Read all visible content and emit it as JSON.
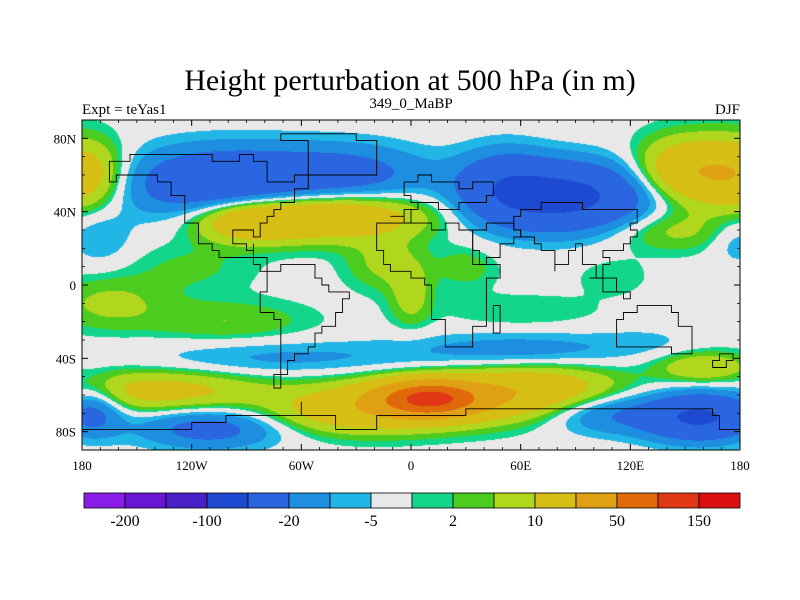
{
  "title": "Height perturbation at 500 hPa (in m)",
  "subtitle_left": "Expt = teYas1",
  "subtitle_center": "349_0_MaBP",
  "subtitle_right": "DJF",
  "chart_data": {
    "type": "heatmap",
    "projection": "cylindrical-equidistant",
    "xlim": [
      -180,
      180
    ],
    "ylim": [
      -90,
      90
    ],
    "x_ticks": [
      {
        "value": -180,
        "label": "180"
      },
      {
        "value": -120,
        "label": "120W"
      },
      {
        "value": -60,
        "label": "60W"
      },
      {
        "value": 0,
        "label": "0"
      },
      {
        "value": 60,
        "label": "60E"
      },
      {
        "value": 120,
        "label": "120E"
      },
      {
        "value": 180,
        "label": "180"
      }
    ],
    "y_ticks": [
      {
        "value": 80,
        "label": "80N"
      },
      {
        "value": 40,
        "label": "40N"
      },
      {
        "value": 0,
        "label": "0"
      },
      {
        "value": -40,
        "label": "40S"
      },
      {
        "value": -80,
        "label": "80S"
      }
    ],
    "colorbar": {
      "colors": [
        "#8a1ee8",
        "#6a14d6",
        "#4a20c8",
        "#1e4ad2",
        "#2a66e0",
        "#1e8ee0",
        "#22b6e6",
        "#e8e8e8",
        "#14d68a",
        "#4ccc1e",
        "#b0d61e",
        "#d6be14",
        "#e0a014",
        "#e06a0a",
        "#e03814",
        "#dc1010"
      ],
      "labels": [
        {
          "after_color": 0,
          "text": "-200"
        },
        {
          "after_color": 2,
          "text": "-100"
        },
        {
          "after_color": 4,
          "text": "-20"
        },
        {
          "after_color": 6,
          "text": "-5"
        },
        {
          "after_color": 8,
          "text": "2"
        },
        {
          "after_color": 10,
          "text": "10"
        },
        {
          "after_color": 12,
          "text": "50"
        },
        {
          "after_color": 14,
          "text": "150"
        }
      ]
    },
    "fields": [
      {
        "lon": -100,
        "lat": 55,
        "value": -45,
        "slon": 40,
        "slat": 14
      },
      {
        "lon": -30,
        "lat": 60,
        "value": -22,
        "slon": 30,
        "slat": 12
      },
      {
        "lon": 85,
        "lat": 48,
        "value": -60,
        "slon": 32,
        "slat": 13
      },
      {
        "lon": 50,
        "lat": 55,
        "value": -25,
        "slon": 18,
        "slat": 14
      },
      {
        "lon": 150,
        "lat": 62,
        "value": 42,
        "slon": 18,
        "slat": 12
      },
      {
        "lon": -180,
        "lat": 60,
        "value": 38,
        "slon": 16,
        "slat": 13
      },
      {
        "lon": 180,
        "lat": 60,
        "value": 38,
        "slon": 16,
        "slat": 13
      },
      {
        "lon": -50,
        "lat": 38,
        "value": 50,
        "slon": 38,
        "slat": 9
      },
      {
        "lon": -90,
        "lat": 35,
        "value": 30,
        "slon": 20,
        "slat": 8
      },
      {
        "lon": 140,
        "lat": 30,
        "value": 14,
        "slon": 25,
        "slat": 8
      },
      {
        "lon": -170,
        "lat": 25,
        "value": -10,
        "slon": 12,
        "slat": 10
      },
      {
        "lon": 178,
        "lat": 25,
        "value": -10,
        "slon": 10,
        "slat": 10
      },
      {
        "lon": -15,
        "lat": 12,
        "value": 12,
        "slon": 14,
        "slat": 10
      },
      {
        "lon": 0,
        "lat": -5,
        "value": 14,
        "slon": 8,
        "slat": 12
      },
      {
        "lon": 30,
        "lat": 10,
        "value": 8,
        "slon": 12,
        "slat": 8
      },
      {
        "lon": -120,
        "lat": 10,
        "value": 6,
        "slon": 25,
        "slat": 10
      },
      {
        "lon": 110,
        "lat": 5,
        "value": 4,
        "slon": 15,
        "slat": 8
      },
      {
        "lon": -165,
        "lat": -10,
        "value": 12,
        "slon": 22,
        "slat": 10
      },
      {
        "lon": -100,
        "lat": -20,
        "value": 10,
        "slon": 30,
        "slat": 8
      },
      {
        "lon": 60,
        "lat": -15,
        "value": 5,
        "slon": 30,
        "slat": 7
      },
      {
        "lon": -70,
        "lat": -40,
        "value": -12,
        "slon": 55,
        "slat": 7
      },
      {
        "lon": 60,
        "lat": -35,
        "value": -14,
        "slon": 45,
        "slat": 7
      },
      {
        "lon": 130,
        "lat": -30,
        "value": -4,
        "slon": 20,
        "slat": 6
      },
      {
        "lon": 160,
        "lat": -45,
        "value": 20,
        "slon": 18,
        "slat": 6
      },
      {
        "lon": -140,
        "lat": -58,
        "value": 28,
        "slon": 40,
        "slat": 8
      },
      {
        "lon": 10,
        "lat": -62,
        "value": 130,
        "slon": 18,
        "slat": 6
      },
      {
        "lon": 20,
        "lat": -62,
        "value": 40,
        "slon": 45,
        "slat": 9
      },
      {
        "lon": 70,
        "lat": -55,
        "value": 25,
        "slon": 30,
        "slat": 8
      },
      {
        "lon": -30,
        "lat": -70,
        "value": 25,
        "slon": 35,
        "slat": 8
      },
      {
        "lon": -110,
        "lat": -78,
        "value": -28,
        "slon": 28,
        "slat": 8
      },
      {
        "lon": 105,
        "lat": -70,
        "value": -20,
        "slon": 22,
        "slat": 8
      },
      {
        "lon": 158,
        "lat": -72,
        "value": -55,
        "slon": 22,
        "slat": 9
      },
      {
        "lon": -175,
        "lat": -68,
        "value": -30,
        "slon": 12,
        "slat": 10
      }
    ],
    "coastlines": [
      [
        [
          0,
          50
        ],
        [
          -5,
          54
        ],
        [
          -5,
          58
        ],
        [
          5,
          60
        ],
        [
          10,
          58
        ],
        [
          15,
          55
        ],
        [
          25,
          54
        ],
        [
          35,
          55
        ],
        [
          45,
          50
        ],
        [
          40,
          45
        ],
        [
          30,
          45
        ],
        [
          25,
          40
        ],
        [
          20,
          42
        ],
        [
          15,
          45
        ],
        [
          10,
          44
        ],
        [
          5,
          43
        ],
        [
          -3,
          38
        ],
        [
          -10,
          36
        ],
        [
          -5,
          35
        ],
        [
          0,
          40
        ],
        [
          3,
          46
        ],
        [
          0,
          50
        ]
      ],
      [
        [
          -10,
          35
        ],
        [
          -17,
          28
        ],
        [
          -17,
          20
        ],
        [
          -15,
          12
        ],
        [
          -10,
          6
        ],
        [
          0,
          5
        ],
        [
          8,
          4
        ],
        [
          9,
          0
        ],
        [
          12,
          -5
        ],
        [
          13,
          -17
        ],
        [
          18,
          -30
        ],
        [
          20,
          -35
        ],
        [
          25,
          -34
        ],
        [
          33,
          -28
        ],
        [
          35,
          -22
        ],
        [
          40,
          -15
        ],
        [
          40,
          -5
        ],
        [
          43,
          5
        ],
        [
          48,
          10
        ],
        [
          42,
          12
        ],
        [
          35,
          25
        ],
        [
          33,
          31
        ],
        [
          25,
          32
        ],
        [
          20,
          30
        ],
        [
          10,
          34
        ],
        [
          0,
          35
        ],
        [
          -10,
          35
        ]
      ],
      [
        [
          45,
          -13
        ],
        [
          50,
          -16
        ],
        [
          48,
          -25
        ],
        [
          44,
          -24
        ],
        [
          45,
          -13
        ]
      ],
      [
        [
          35,
          30
        ],
        [
          40,
          35
        ],
        [
          55,
          30
        ],
        [
          60,
          25
        ],
        [
          57,
          22
        ],
        [
          50,
          15
        ],
        [
          43,
          13
        ],
        [
          38,
          20
        ],
        [
          35,
          30
        ]
      ],
      [
        [
          60,
          25
        ],
        [
          67,
          24
        ],
        [
          72,
          20
        ],
        [
          77,
          8
        ],
        [
          80,
          12
        ],
        [
          85,
          20
        ],
        [
          90,
          22
        ],
        [
          92,
          20
        ],
        [
          95,
          10
        ],
        [
          100,
          6
        ],
        [
          102,
          2
        ],
        [
          105,
          10
        ],
        [
          108,
          15
        ],
        [
          105,
          20
        ],
        [
          110,
          20
        ],
        [
          115,
          22
        ],
        [
          120,
          25
        ],
        [
          122,
          30
        ],
        [
          120,
          35
        ],
        [
          125,
          40
        ],
        [
          110,
          42
        ],
        [
          95,
          45
        ],
        [
          80,
          44
        ],
        [
          70,
          42
        ],
        [
          60,
          38
        ],
        [
          55,
          30
        ],
        [
          60,
          25
        ]
      ],
      [
        [
          96,
          5
        ],
        [
          105,
          -5
        ],
        [
          116,
          -8
        ],
        [
          120,
          -5
        ],
        [
          113,
          2
        ],
        [
          105,
          2
        ],
        [
          96,
          5
        ]
      ],
      [
        [
          114,
          -22
        ],
        [
          114,
          -34
        ],
        [
          118,
          -35
        ],
        [
          125,
          -33
        ],
        [
          130,
          -32
        ],
        [
          138,
          -35
        ],
        [
          144,
          -38
        ],
        [
          148,
          -38
        ],
        [
          153,
          -28
        ],
        [
          152,
          -24
        ],
        [
          145,
          -15
        ],
        [
          142,
          -11
        ],
        [
          136,
          -12
        ],
        [
          130,
          -12
        ],
        [
          125,
          -15
        ],
        [
          118,
          -20
        ],
        [
          114,
          -22
        ]
      ],
      [
        [
          166,
          -46
        ],
        [
          174,
          -41
        ],
        [
          178,
          -38
        ],
        [
          174,
          -36
        ],
        [
          170,
          -42
        ],
        [
          166,
          -46
        ]
      ],
      [
        [
          -80,
          9
        ],
        [
          -77,
          8
        ],
        [
          -72,
          12
        ],
        [
          -63,
          10
        ],
        [
          -52,
          5
        ],
        [
          -50,
          0
        ],
        [
          -44,
          -2
        ],
        [
          -35,
          -6
        ],
        [
          -39,
          -15
        ],
        [
          -41,
          -22
        ],
        [
          -48,
          -26
        ],
        [
          -53,
          -34
        ],
        [
          -58,
          -38
        ],
        [
          -65,
          -42
        ],
        [
          -66,
          -50
        ],
        [
          -72,
          -55
        ],
        [
          -75,
          -50
        ],
        [
          -73,
          -40
        ],
        [
          -72,
          -30
        ],
        [
          -71,
          -18
        ],
        [
          -76,
          -14
        ],
        [
          -81,
          -5
        ],
        [
          -80,
          0
        ],
        [
          -78,
          5
        ],
        [
          -80,
          9
        ]
      ],
      [
        [
          -80,
          9
        ],
        [
          -84,
          12
        ],
        [
          -88,
          14
        ],
        [
          -92,
          15
        ],
        [
          -97,
          16
        ],
        [
          -105,
          20
        ],
        [
          -110,
          24
        ],
        [
          -117,
          32
        ],
        [
          -124,
          40
        ],
        [
          -124,
          48
        ],
        [
          -130,
          55
        ],
        [
          -140,
          60
        ],
        [
          -150,
          60
        ],
        [
          -160,
          58
        ],
        [
          -165,
          62
        ],
        [
          -165,
          68
        ],
        [
          -155,
          71
        ],
        [
          -140,
          70
        ],
        [
          -125,
          70
        ],
        [
          -110,
          68
        ],
        [
          -95,
          70
        ],
        [
          -85,
          68
        ],
        [
          -80,
          62
        ],
        [
          -78,
          55
        ],
        [
          -65,
          60
        ],
        [
          -58,
          52
        ],
        [
          -65,
          45
        ],
        [
          -70,
          42
        ],
        [
          -75,
          38
        ],
        [
          -77,
          35
        ],
        [
          -81,
          31
        ],
        [
          -81,
          25
        ],
        [
          -85,
          30
        ],
        [
          -90,
          29
        ],
        [
          -97,
          27
        ],
        [
          -97,
          22
        ],
        [
          -90,
          20
        ],
        [
          -87,
          21
        ],
        [
          -88,
          16
        ],
        [
          -84,
          15
        ],
        [
          -80,
          9
        ]
      ],
      [
        [
          -55,
          60
        ],
        [
          -45,
          60
        ],
        [
          -20,
          70
        ],
        [
          -20,
          78
        ],
        [
          -30,
          83
        ],
        [
          -60,
          82
        ],
        [
          -72,
          78
        ],
        [
          -55,
          60
        ]
      ],
      [
        [
          -180,
          -78
        ],
        [
          -150,
          -77
        ],
        [
          -120,
          -74
        ],
        [
          -100,
          -72
        ],
        [
          -80,
          -73
        ],
        [
          -60,
          -64
        ],
        [
          -60,
          -72
        ],
        [
          -40,
          -78
        ],
        [
          -20,
          -73
        ],
        [
          0,
          -70
        ],
        [
          30,
          -69
        ],
        [
          60,
          -67
        ],
        [
          90,
          -66
        ],
        [
          120,
          -66
        ],
        [
          150,
          -68
        ],
        [
          165,
          -72
        ],
        [
          170,
          -78
        ],
        [
          180,
          -78
        ]
      ]
    ]
  }
}
